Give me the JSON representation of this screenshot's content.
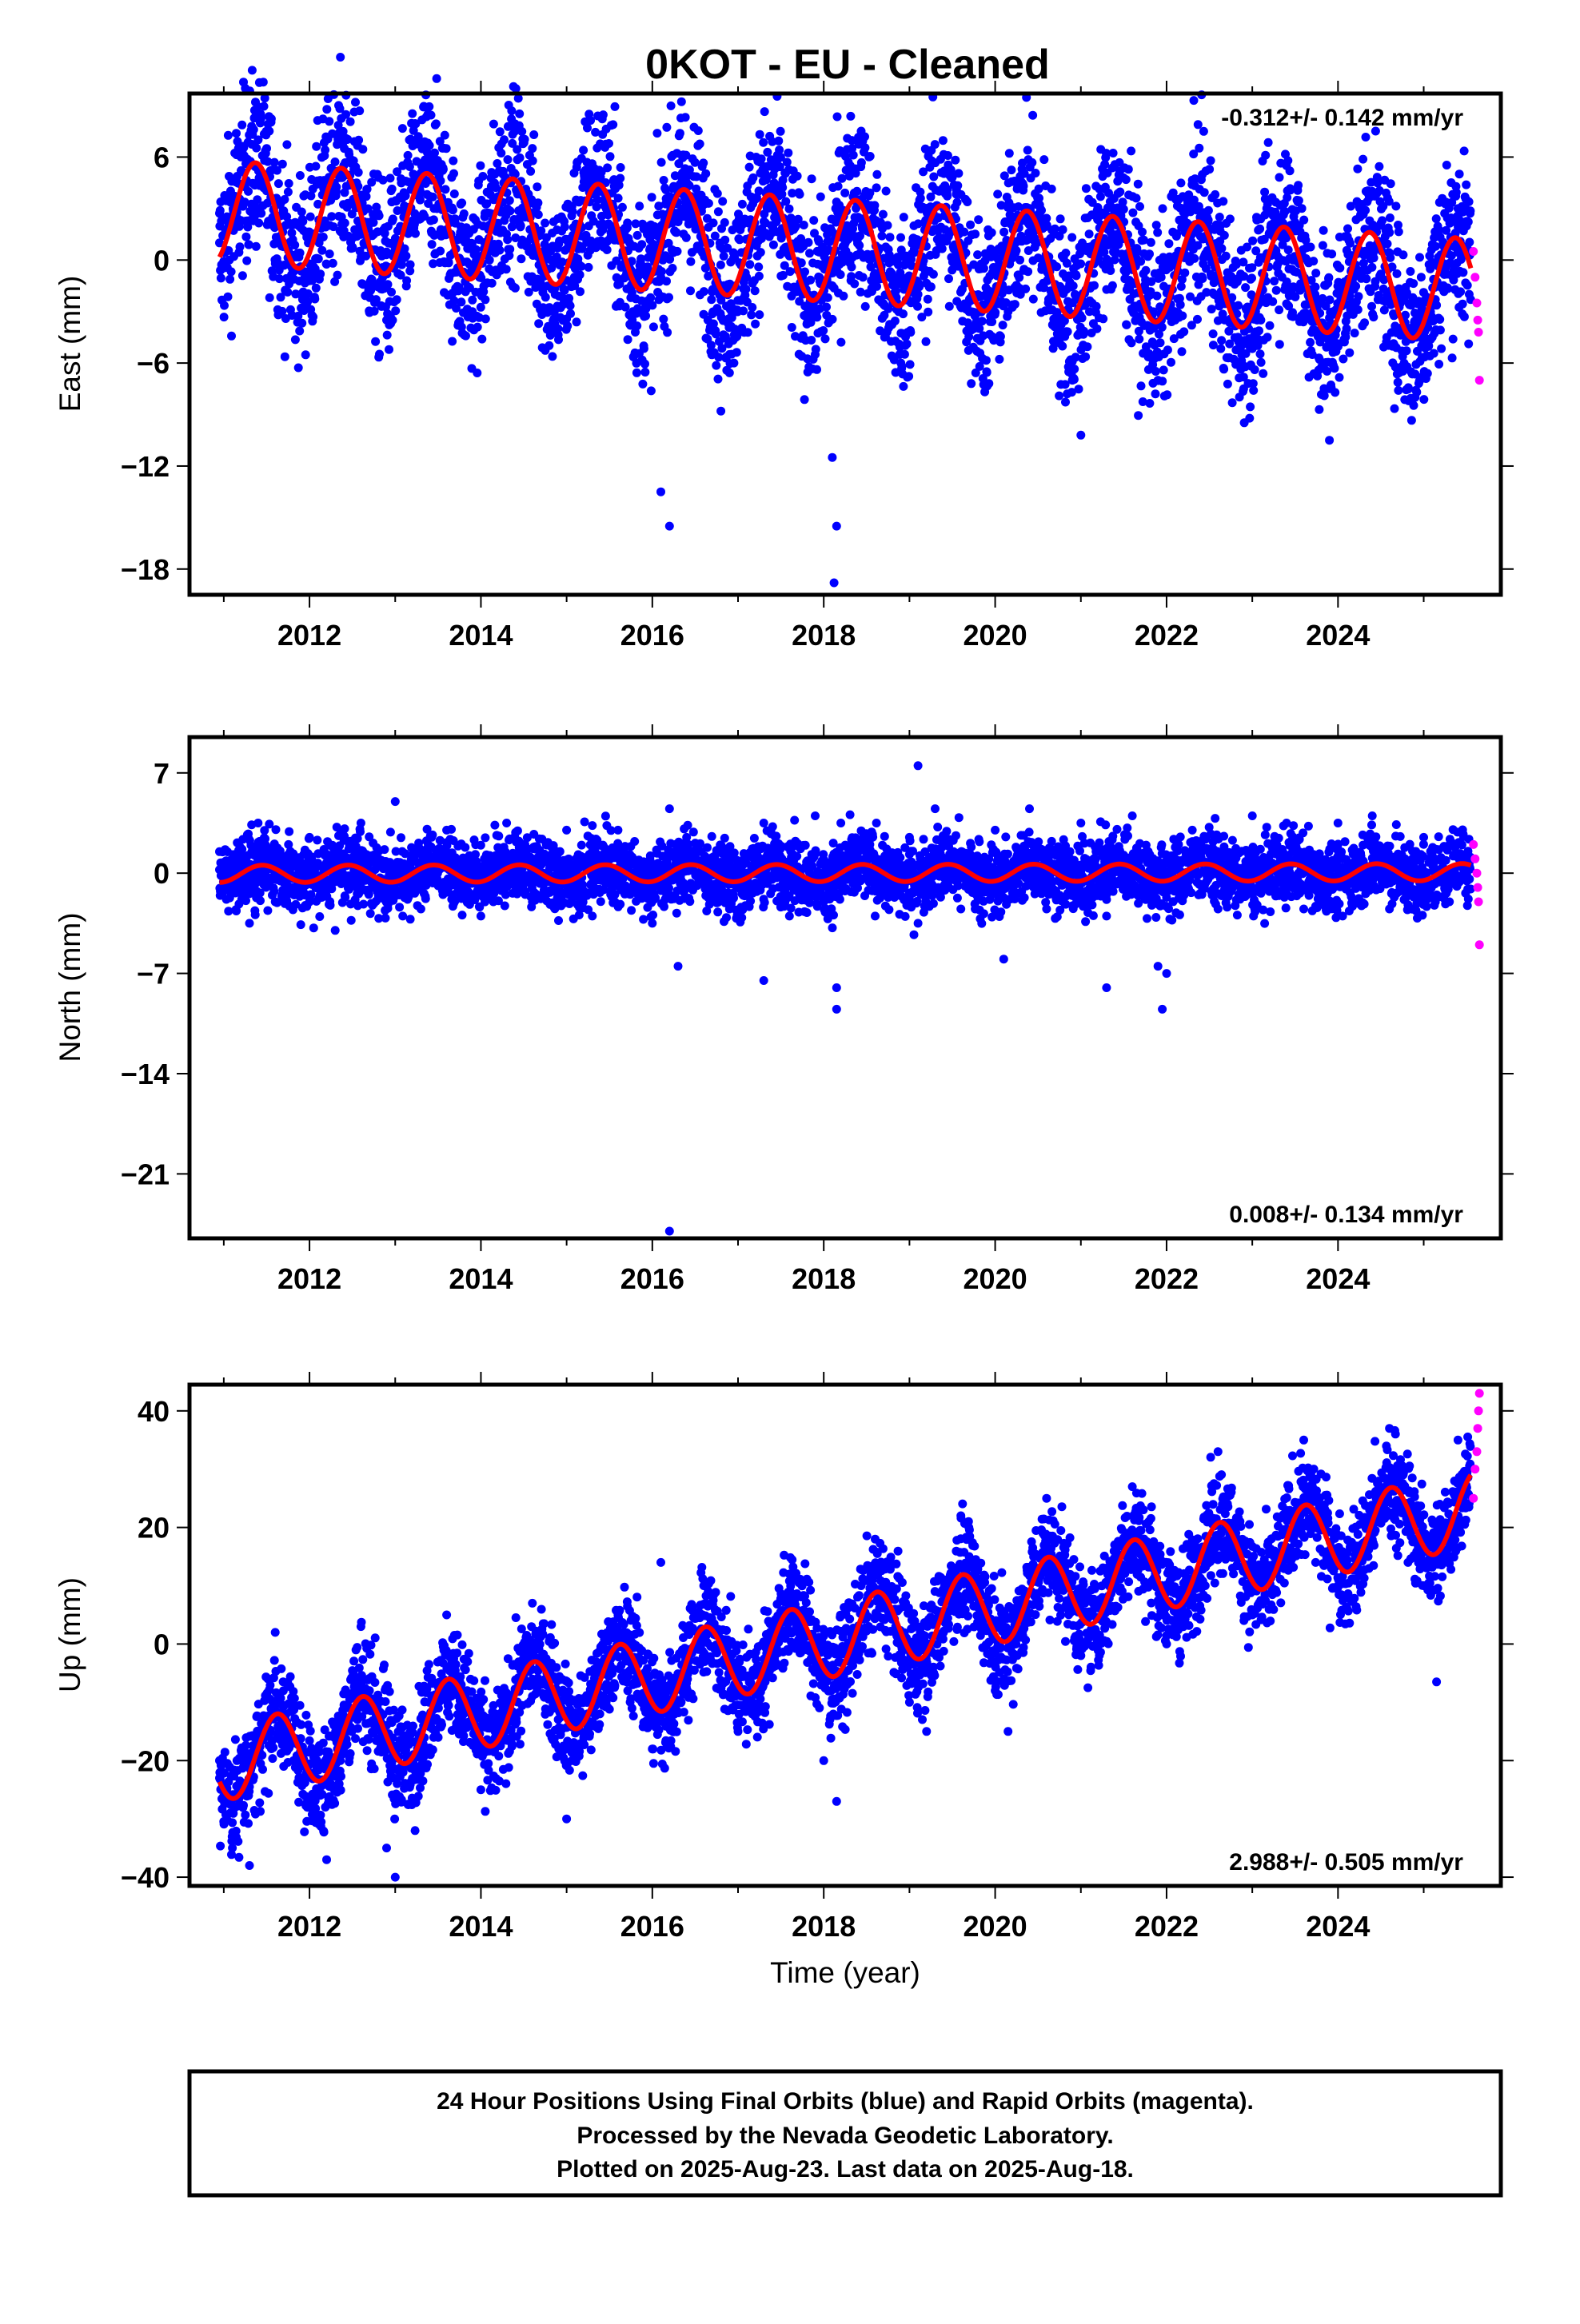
{
  "title": "0KOT  - EU - Cleaned",
  "footer": {
    "line1": "24 Hour Positions Using Final Orbits (blue) and Rapid Orbits (magenta).",
    "line2": "Processed by the Nevada Geodetic Laboratory.",
    "line3": "Plotted on 2025-Aug-23. Last data on 2025-Aug-18."
  },
  "colors": {
    "final_orbits": "#0000ff",
    "rapid_orbits": "#ff00ff",
    "model_fit": "#ff0000"
  },
  "chart_data": [
    {
      "type": "scatter",
      "ylabel": "East (mm)",
      "xlabel": "",
      "rate_label": "-0.312+/- 0.142 mm/yr",
      "rate_placement": "top-right",
      "xlim": [
        2010.6,
        2025.9
      ],
      "ylim": [
        -19.5,
        9.7
      ],
      "x_ticks": [
        "2012",
        "2014",
        "2016",
        "2018",
        "2020",
        "2022",
        "2024"
      ],
      "y_ticks": [
        "6",
        "0",
        "−6",
        "−12",
        "−18"
      ],
      "y_tick_values": [
        6,
        0,
        -6,
        -12,
        -18
      ],
      "model": {
        "start": 2010.95,
        "end": 2025.55,
        "offset": 2.8,
        "trend": -0.312,
        "amplitude": 3.0,
        "peak_phase": 0.37
      },
      "series": [
        {
          "role": "final orbits",
          "x": [
            2010.95,
            2011.2,
            2011.38,
            2011.5,
            2011.9,
            2012.1,
            2012.4,
            2012.9,
            2013.1,
            2013.4,
            2013.9,
            2014.1,
            2014.4,
            2014.9,
            2015.1,
            2015.4,
            2015.9,
            2016.1,
            2016.4,
            2016.9,
            2017.1,
            2017.4,
            2017.9,
            2018.1,
            2018.4,
            2018.9,
            2019.1,
            2019.4,
            2019.9,
            2020.1,
            2020.4,
            2020.9,
            2021.1,
            2021.4,
            2021.9,
            2022.1,
            2022.4,
            2022.9,
            2023.1,
            2023.4,
            2023.9,
            2024.1,
            2024.4,
            2024.9,
            2025.1,
            2025.4,
            2016.1,
            2016.2,
            2018.1,
            2018.12,
            2018.15,
            2018.4,
            2018.33,
            2016.8,
            2021.0,
            2023.9
          ],
          "y": [
            1.0,
            6.0,
            8.5,
            6.5,
            -2.0,
            -1.0,
            5.5,
            -3.5,
            0.5,
            5.5,
            -3.0,
            0.0,
            5.0,
            -4.0,
            -0.5,
            4.0,
            -5.0,
            -1.0,
            4.5,
            -5.5,
            -1.0,
            4.0,
            -5.5,
            -1.5,
            3.5,
            -6.0,
            -2.0,
            3.0,
            -6.5,
            -2.5,
            3.0,
            -7.0,
            -3.0,
            2.5,
            -7.0,
            -3.5,
            2.0,
            -7.5,
            -3.5,
            5.5,
            -7.5,
            -4.0,
            4.0,
            -8.0,
            -4.5,
            3.0,
            -13.5,
            -15.5,
            -11.5,
            -18.8,
            -15.5,
            2.5,
            6.5,
            -8.8,
            -10.2,
            -10.5
          ]
        },
        {
          "role": "rapid orbits",
          "x": [
            2025.58,
            2025.6,
            2025.62,
            2025.63,
            2025.64,
            2025.65
          ],
          "y": [
            0.5,
            -1.0,
            -2.5,
            -3.5,
            -4.2,
            -7.0
          ]
        }
      ]
    },
    {
      "type": "scatter",
      "ylabel": "North (mm)",
      "xlabel": "",
      "rate_label": "0.008+/- 0.134 mm/yr",
      "rate_placement": "bottom-right",
      "xlim": [
        2010.6,
        2025.9
      ],
      "ylim": [
        -25.5,
        9.5
      ],
      "x_ticks": [
        "2012",
        "2014",
        "2016",
        "2018",
        "2020",
        "2022",
        "2024"
      ],
      "y_ticks": [
        "7",
        "0",
        "−7",
        "−14",
        "−21"
      ],
      "y_tick_values": [
        7,
        0,
        -7,
        -14,
        -21
      ],
      "model": {
        "start": 2010.95,
        "end": 2025.55,
        "offset": -0.05,
        "trend": 0.008,
        "amplitude": 0.6,
        "peak_phase": 0.45
      },
      "series": [
        {
          "role": "final orbits",
          "x": [
            2010.95,
            2011.3,
            2011.4,
            2011.6,
            2012.0,
            2012.3,
            2012.6,
            2013.0,
            2013.3,
            2013.6,
            2014.0,
            2014.3,
            2014.6,
            2015.0,
            2015.3,
            2015.6,
            2016.0,
            2016.2,
            2016.4,
            2016.9,
            2017.3,
            2017.6,
            2017.9,
            2018.0,
            2018.2,
            2018.6,
            2019.0,
            2019.1,
            2019.3,
            2019.6,
            2020.0,
            2020.4,
            2020.6,
            2021.0,
            2021.3,
            2021.6,
            2021.9,
            2021.95,
            2022.0,
            2022.3,
            2022.6,
            2023.0,
            2023.4,
            2023.6,
            2024.0,
            2024.4,
            2024.6,
            2025.0,
            2025.3,
            2016.2,
            2016.3,
            2017.3,
            2018.15,
            2018.15,
            2019.1,
            2020.1,
            2021.3
          ],
          "y": [
            1.5,
            -3.5,
            3.5,
            -2.0,
            2.5,
            -4.0,
            3.5,
            5.0,
            -2.5,
            3.0,
            -3.0,
            3.5,
            -2.0,
            3.0,
            -3.0,
            3.0,
            -3.5,
            4.5,
            2.5,
            -2.5,
            3.5,
            -3.0,
            4.0,
            -2.0,
            3.5,
            -3.0,
            2.5,
            -3.5,
            4.5,
            -2.5,
            3.0,
            4.5,
            -2.5,
            3.5,
            -3.0,
            4.0,
            -6.5,
            -9.5,
            -7.0,
            3.0,
            -2.5,
            4.0,
            3.5,
            -2.5,
            3.5,
            4.0,
            -2.5,
            2.5,
            -2.0,
            -25.0,
            -6.5,
            -7.5,
            -8.0,
            -9.5,
            7.5,
            -6.0,
            -8.0
          ]
        },
        {
          "role": "rapid orbits",
          "x": [
            2025.58,
            2025.6,
            2025.62,
            2025.63,
            2025.64,
            2025.65
          ],
          "y": [
            2.0,
            1.0,
            0.0,
            -1.0,
            -2.0,
            -5.0
          ]
        }
      ]
    },
    {
      "type": "scatter",
      "ylabel": "Up (mm)",
      "xlabel": "Time (year)",
      "rate_label": "2.988+/- 0.505 mm/yr",
      "rate_placement": "bottom-right",
      "xlim": [
        2010.6,
        2025.9
      ],
      "ylim": [
        -41.5,
        44.5
      ],
      "x_ticks": [
        "2012",
        "2014",
        "2016",
        "2018",
        "2020",
        "2022",
        "2024"
      ],
      "y_ticks": [
        "40",
        "20",
        "0",
        "−20",
        "−40"
      ],
      "y_tick_values": [
        40,
        20,
        0,
        -20,
        -40
      ],
      "model": {
        "start": 2010.95,
        "end": 2025.55,
        "offset": -20.5,
        "trend": 2.988,
        "amplitude": 6.5,
        "peak_phase": 0.62
      },
      "series": [
        {
          "role": "final orbits",
          "x": [
            2010.95,
            2011.1,
            2011.3,
            2011.6,
            2012.0,
            2012.2,
            2012.6,
            2012.9,
            2013.0,
            2013.6,
            2014.0,
            2014.6,
            2015.0,
            2015.6,
            2016.0,
            2016.1,
            2016.6,
            2017.0,
            2017.6,
            2018.0,
            2018.15,
            2018.6,
            2019.0,
            2019.2,
            2019.6,
            2020.0,
            2020.15,
            2020.6,
            2021.0,
            2021.6,
            2022.0,
            2022.6,
            2023.0,
            2023.6,
            2024.0,
            2024.6,
            2025.0,
            2025.15,
            2025.4
          ],
          "y": [
            -20.0,
            -35.0,
            -38.0,
            2.0,
            -28.0,
            -37.0,
            3.0,
            -35.0,
            -40.0,
            5.0,
            -25.0,
            7.0,
            -30.0,
            5.0,
            -18.0,
            14.0,
            10.0,
            -15.0,
            12.0,
            -20.0,
            -27.0,
            18.0,
            -10.0,
            -15.0,
            22.0,
            -8.0,
            -15.0,
            25.0,
            -2.0,
            27.0,
            0.0,
            33.0,
            5.0,
            35.0,
            10.0,
            37.0,
            10.0,
            -6.5,
            35.0
          ]
        },
        {
          "role": "rapid orbits",
          "x": [
            2025.58,
            2025.6,
            2025.62,
            2025.63,
            2025.64,
            2025.65
          ],
          "y": [
            25.0,
            30.0,
            33.0,
            37.0,
            40.0,
            43.0
          ]
        }
      ]
    }
  ]
}
